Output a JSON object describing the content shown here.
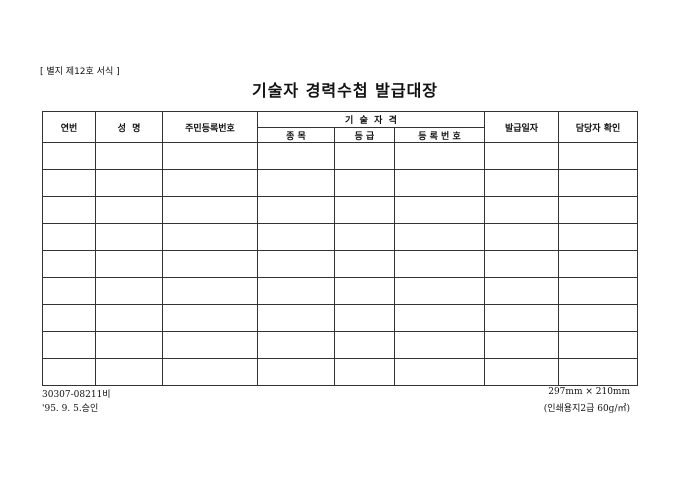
{
  "form_label": "[ 별지 제12호 서식 ]",
  "title": "기술자 경력수첩 발급대장",
  "headers": {
    "no": "연번",
    "name": "성  명",
    "resident_no": "주민등록번호",
    "qualification": "기  술  자  격",
    "field": "종 목",
    "grade": "등 급",
    "reg_no": "등 록 번 호",
    "issue_date": "발급일자",
    "officer": "담당자 확인"
  },
  "row_count": 9,
  "footer": {
    "code": "30307-08211비",
    "approval": "'95. 9. 5.승인",
    "size": "297mm × 210mm",
    "paper": "(인쇄용지2급 60g/㎡)"
  }
}
